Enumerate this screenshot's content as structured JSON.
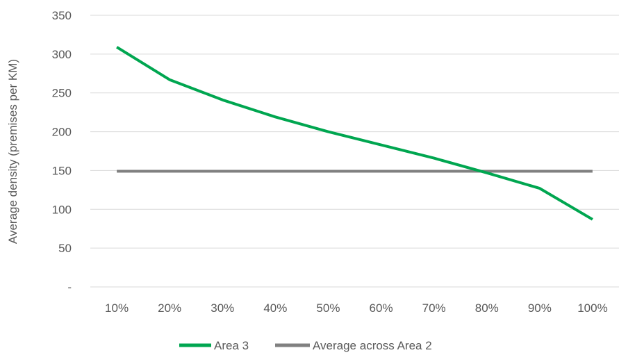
{
  "chart_data": {
    "type": "line",
    "title": "",
    "xlabel": "",
    "ylabel": "Average  density (premises per KM)",
    "categories": [
      "10%",
      "20%",
      "30%",
      "40%",
      "50%",
      "60%",
      "70%",
      "80%",
      "90%",
      "100%"
    ],
    "ylim": [
      0,
      350
    ],
    "yticks": [
      0,
      50,
      100,
      150,
      200,
      250,
      300,
      350
    ],
    "ytick_labels": [
      "-",
      "50",
      "100",
      "150",
      "200",
      "250",
      "300",
      "350"
    ],
    "grid": true,
    "legend_position": "bottom",
    "series": [
      {
        "name": "Area 3",
        "color": "#00A650",
        "values": [
          309,
          267,
          241,
          219,
          200,
          183,
          166,
          147,
          127,
          87
        ]
      },
      {
        "name": "Average across Area 2",
        "color": "#808080",
        "values": [
          149,
          149,
          149,
          149,
          149,
          149,
          149,
          149,
          149,
          149
        ]
      }
    ]
  }
}
